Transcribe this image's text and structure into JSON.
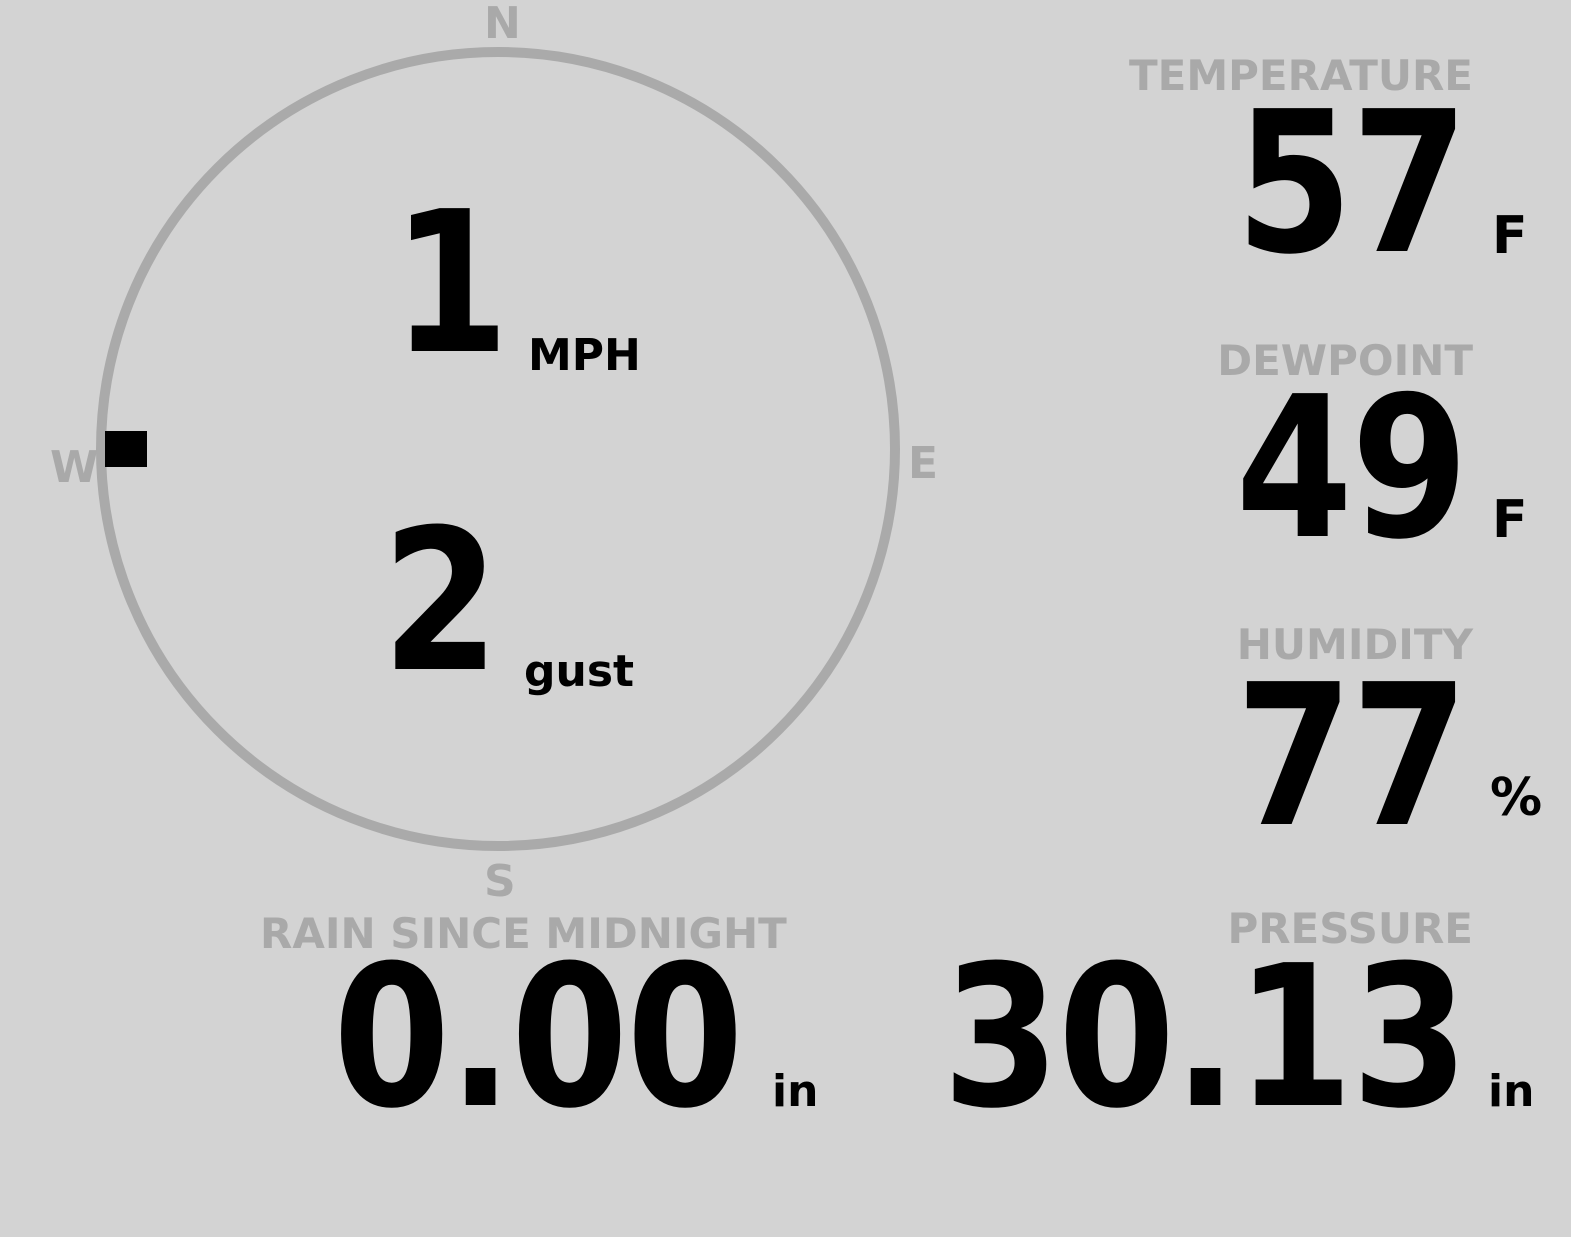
{
  "wind": {
    "speed": "1",
    "speed_unit": "MPH",
    "gust": "2",
    "gust_unit": "gust",
    "direction_degrees": 270,
    "compass": {
      "n": "N",
      "e": "E",
      "s": "S",
      "w": "W"
    }
  },
  "temperature": {
    "label": "TEMPERATURE",
    "value": "57",
    "unit": "F"
  },
  "dewpoint": {
    "label": "DEWPOINT",
    "value": "49",
    "unit": "F"
  },
  "humidity": {
    "label": "HUMIDITY",
    "value": "77",
    "unit": "%"
  },
  "rain": {
    "label": "RAIN SINCE MIDNIGHT",
    "value": "0.00",
    "unit": "in"
  },
  "pressure": {
    "label": "PRESSURE",
    "value": "30.13",
    "unit": "in"
  },
  "colors": {
    "background": "#d3d3d3",
    "label": "#a9a9a9",
    "ring": "#aaaaaa",
    "value": "#000000"
  }
}
